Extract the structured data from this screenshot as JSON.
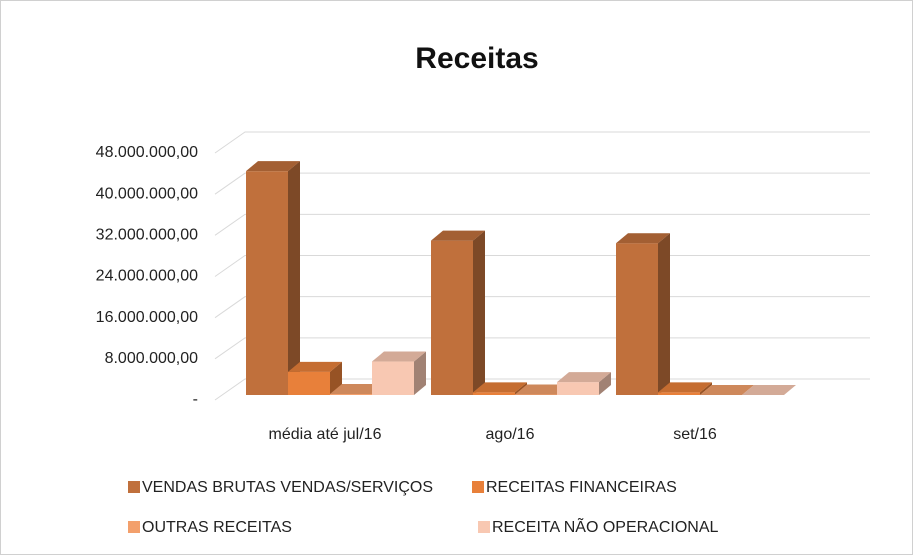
{
  "chart_data": {
    "type": "bar3d",
    "title": "Receitas",
    "categories": [
      "média até jul/16",
      "ago/16",
      "set/16"
    ],
    "series": [
      {
        "name": "VENDAS BRUTAS VENDAS/SERVIÇOS",
        "color": "#c0703c",
        "values": [
          43500000,
          30000000,
          29500000
        ]
      },
      {
        "name": "RECEITAS FINANCEIRAS",
        "color": "#e8803a",
        "values": [
          4500000,
          500000,
          500000
        ]
      },
      {
        "name": "OUTRAS RECEITAS",
        "color": "#f3a06c",
        "values": [
          200000,
          100000,
          0
        ]
      },
      {
        "name": "RECEITA NÃO OPERACIONAL",
        "color": "#f8c8b2",
        "values": [
          6500000,
          2500000,
          0
        ]
      }
    ],
    "ylim": [
      0,
      48000000
    ],
    "yticks": [
      {
        "value": 0,
        "label": "-"
      },
      {
        "value": 8000000,
        "label": "8.000.000,00"
      },
      {
        "value": 16000000,
        "label": "16.000.000,00"
      },
      {
        "value": 24000000,
        "label": "24.000.000,00"
      },
      {
        "value": 32000000,
        "label": "32.000.000,00"
      },
      {
        "value": 40000000,
        "label": "40.000.000,00"
      },
      {
        "value": 48000000,
        "label": "48.000.000,00"
      }
    ],
    "grid": true,
    "legend": "bottom"
  }
}
